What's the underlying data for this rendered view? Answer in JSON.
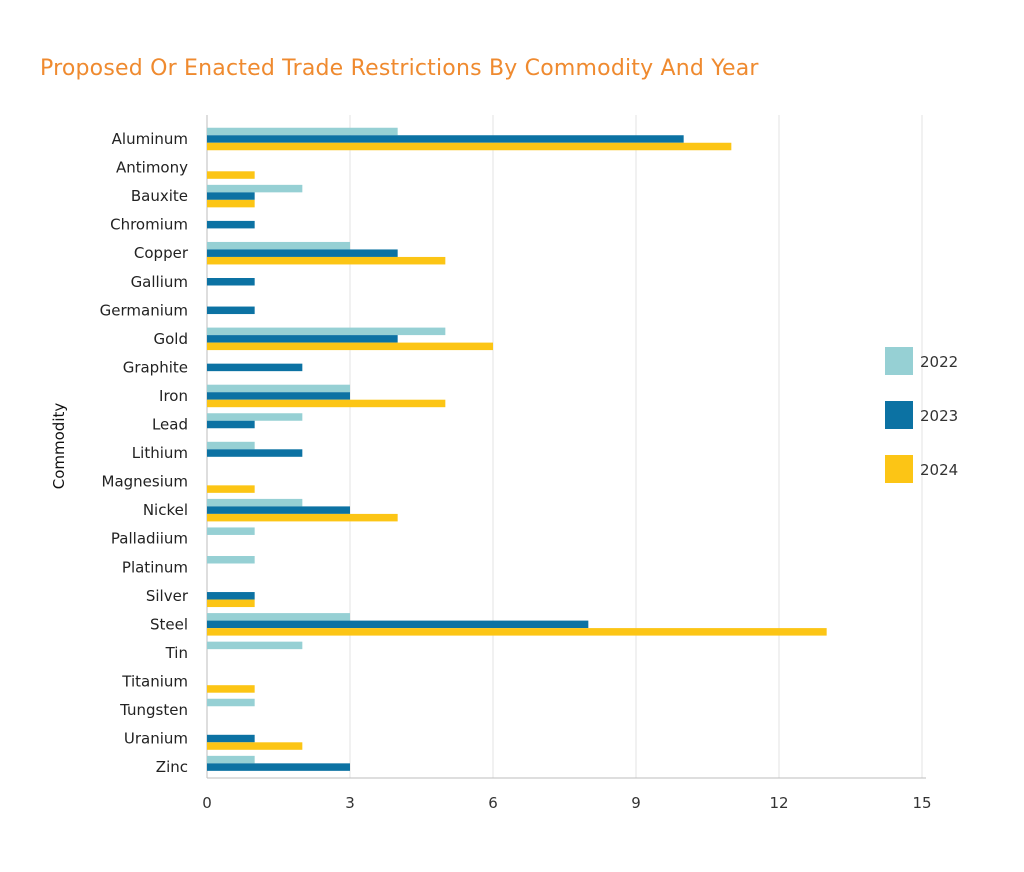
{
  "chart_data": {
    "type": "bar",
    "orientation": "horizontal",
    "title": "Proposed Or Enacted Trade Restrictions By Commodity And Year",
    "ylabel": "Commodity",
    "xlabel": "",
    "xlim": [
      0,
      15
    ],
    "xticks": [
      0,
      3,
      6,
      9,
      12,
      15
    ],
    "grid": "vertical",
    "legend_position": "right",
    "categories": [
      "Aluminum",
      "Antimony",
      "Bauxite",
      "Chromium",
      "Copper",
      "Gallium",
      "Germanium",
      "Gold",
      "Graphite",
      "Iron",
      "Lead",
      "Lithium",
      "Magnesium",
      "Nickel",
      "Palladiium",
      "Platinum",
      "Silver",
      "Steel",
      "Tin",
      "Titanium",
      "Tungsten",
      "Uranium",
      "Zinc"
    ],
    "series": [
      {
        "name": "2022",
        "color": "#96d0d4",
        "values": [
          4,
          0,
          2,
          0,
          3,
          0,
          0,
          5,
          0,
          3,
          2,
          1,
          0,
          2,
          1,
          1,
          0,
          3,
          2,
          0,
          1,
          0,
          1
        ]
      },
      {
        "name": "2023",
        "color": "#0c72a3",
        "values": [
          10,
          0,
          1,
          1,
          4,
          1,
          1,
          4,
          2,
          3,
          1,
          2,
          0,
          3,
          0,
          0,
          1,
          8,
          0,
          0,
          0,
          1,
          3
        ]
      },
      {
        "name": "2024",
        "color": "#fcc515",
        "values": [
          11,
          1,
          1,
          0,
          5,
          0,
          0,
          6,
          0,
          5,
          0,
          0,
          1,
          4,
          0,
          0,
          1,
          13,
          0,
          1,
          0,
          2,
          0
        ]
      }
    ]
  }
}
